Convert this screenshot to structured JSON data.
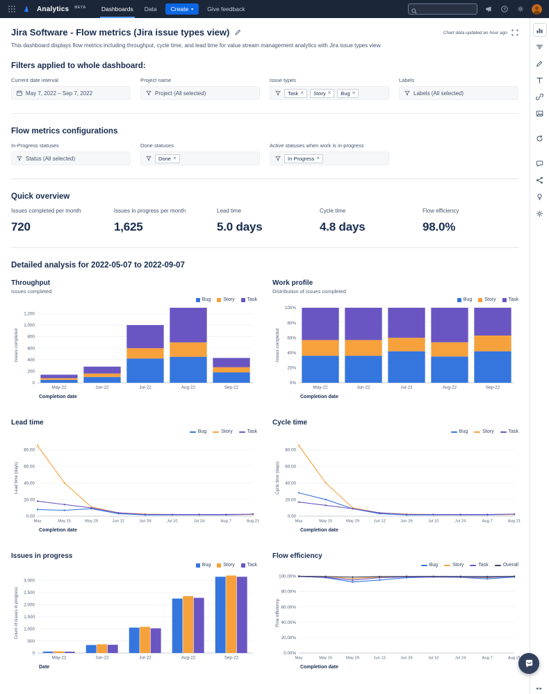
{
  "navbar": {
    "app_name": "Analytics",
    "beta": "BETA",
    "nav_dashboards": "Dashboards",
    "nav_data": "Data",
    "create_label": "Create",
    "feedback_label": "Give feedback",
    "search_placeholder": ""
  },
  "header": {
    "title": "Jira Software - Flow metrics (Jira issue types view)",
    "updated_note": "Chart data updated an hour ago",
    "description": "This dashboard displays flow metrics including throughput, cycle time, and lead time for value stream management analytics with Jira issue types view."
  },
  "filters": {
    "heading": "Filters applied to whole dashboard:",
    "fields": [
      {
        "label": "Current date interval",
        "icon": "calendar-icon",
        "value": "May 7, 2022  –  Sep 7, 2022",
        "chips": []
      },
      {
        "label": "Project name",
        "icon": "funnel-icon",
        "value": "Project (All selected)",
        "chips": []
      },
      {
        "label": "Issue types",
        "icon": "funnel-icon",
        "value": "",
        "chips": [
          "Task",
          "Story",
          "Bug"
        ]
      },
      {
        "label": "Labels",
        "icon": "funnel-icon",
        "value": "Labels (All selected)",
        "chips": []
      }
    ]
  },
  "configs": {
    "heading": "Flow metrics configurations",
    "fields": [
      {
        "label": "In-Progress statuses",
        "icon": "funnel-icon",
        "value": "Status (All selected)",
        "chips": []
      },
      {
        "label": "Done statuses",
        "icon": "funnel-icon",
        "value": "",
        "chips": [
          "Done"
        ]
      },
      {
        "label": "Active statuses when work is in-progress",
        "icon": "funnel-icon",
        "value": "",
        "chips": [
          "In Progress"
        ]
      }
    ]
  },
  "overview": {
    "heading": "Quick overview",
    "metrics": [
      {
        "label": "Issues completed per month",
        "value": "720"
      },
      {
        "label": "Issues in progress per month",
        "value": "1,625"
      },
      {
        "label": "Lead time",
        "value": "5.0 days"
      },
      {
        "label": "Cycle time",
        "value": "4.8 days"
      },
      {
        "label": "Flow efficiency",
        "value": "98.0%"
      }
    ]
  },
  "detailed_heading": "Detailed analysis for 2022-05-07 to 2022-09-07",
  "sidebar_icons": [
    "charts-panel-icon",
    "filter-icon",
    "draw-icon",
    "text-icon",
    "link-icon",
    "image-icon",
    "refresh-icon",
    "comment-icon",
    "share-icon",
    "tips-icon",
    "settings-icon"
  ],
  "colors": {
    "bug": "#3575DE",
    "story": "#F6A13C",
    "task": "#6A55C2",
    "overall": "#344563",
    "accent": "#0C66E4"
  },
  "chart_data": [
    {
      "type": "bar",
      "mode": "stacked",
      "percent": false,
      "title": "Throughput",
      "subtitle": "Issues completed",
      "categories": [
        "May-22",
        "Jun-22",
        "Jul-22",
        "Aug-22",
        "Sep-22"
      ],
      "series": [
        {
          "name": "Bug",
          "color": "#3575DE",
          "values": [
            50,
            100,
            420,
            450,
            180
          ]
        },
        {
          "name": "Story",
          "color": "#F6A13C",
          "values": [
            30,
            60,
            180,
            250,
            90
          ]
        },
        {
          "name": "Task",
          "color": "#6A55C2",
          "values": [
            60,
            120,
            400,
            600,
            160
          ]
        }
      ],
      "xlabel": "Completion date",
      "ylabel": "Issues completed",
      "ymax": 1300,
      "legend": "square",
      "yticks": [
        {
          "v": 0,
          "l": "0"
        },
        {
          "v": 200,
          "l": "200"
        },
        {
          "v": 400,
          "l": "400"
        },
        {
          "v": 600,
          "l": "600"
        },
        {
          "v": 800,
          "l": "800"
        },
        {
          "v": 1000,
          "l": "1,000"
        },
        {
          "v": 1200,
          "l": "1,200"
        }
      ]
    },
    {
      "type": "bar",
      "mode": "stacked",
      "percent": true,
      "title": "Work profile",
      "subtitle": "Distribution of issues completed",
      "categories": [
        "May-22",
        "Jun-22",
        "Jul-22",
        "Aug-22",
        "Sep-22"
      ],
      "series": [
        {
          "name": "Bug",
          "color": "#3575DE",
          "values": [
            36,
            36,
            42,
            35,
            42
          ]
        },
        {
          "name": "Story",
          "color": "#F6A13C",
          "values": [
            21,
            21,
            18,
            19,
            21
          ]
        },
        {
          "name": "Task",
          "color": "#6A55C2",
          "values": [
            43,
            43,
            40,
            46,
            37
          ]
        }
      ],
      "xlabel": "Completion date",
      "ylabel": "Issues completed",
      "ymax": 100,
      "legend": "square",
      "yticks": [
        {
          "v": 0,
          "l": "0%"
        },
        {
          "v": 20,
          "l": "20%"
        },
        {
          "v": 40,
          "l": "40%"
        },
        {
          "v": 60,
          "l": "60%"
        },
        {
          "v": 80,
          "l": "80%"
        },
        {
          "v": 100,
          "l": "100%"
        }
      ]
    },
    {
      "type": "line",
      "title": "Lead time",
      "x": [
        "May",
        "May 15",
        "May 29",
        "Jun 12",
        "Jun 26",
        "Jul 10",
        "Jul 24",
        "Aug 7",
        "Aug 21"
      ],
      "series": [
        {
          "name": "Bug",
          "color": "#3575DE",
          "values": [
            8,
            7,
            9,
            3,
            1.5,
            1.5,
            1.5,
            1.5,
            2
          ]
        },
        {
          "name": "Story",
          "color": "#F6A13C",
          "values": [
            85,
            40,
            11,
            4,
            2.5,
            2,
            2,
            2,
            2
          ]
        },
        {
          "name": "Task",
          "color": "#6A55C2",
          "values": [
            18,
            14,
            10,
            4,
            2,
            2,
            2,
            2,
            2.5
          ]
        }
      ],
      "xlabel": "Completion date",
      "ylabel": "Lead time (days)",
      "ymax": 92,
      "legend": "line",
      "yticks": [
        {
          "v": 0,
          "l": "0.00"
        },
        {
          "v": 20,
          "l": "20.00"
        },
        {
          "v": 40,
          "l": "40.00"
        },
        {
          "v": 60,
          "l": "60.00"
        },
        {
          "v": 80,
          "l": "80.00"
        }
      ]
    },
    {
      "type": "line",
      "title": "Cycle time",
      "x": [
        "May",
        "May 15",
        "May 29",
        "Jun 12",
        "Jun 26",
        "Jul 10",
        "Jul 24",
        "Aug 7",
        "Aug 21"
      ],
      "series": [
        {
          "name": "Bug",
          "color": "#3575DE",
          "values": [
            28,
            20,
            9,
            3,
            1.5,
            1.5,
            1.5,
            1.5,
            2
          ]
        },
        {
          "name": "Story",
          "color": "#F6A13C",
          "values": [
            85,
            40,
            10,
            4,
            2.5,
            2,
            2,
            2,
            2
          ]
        },
        {
          "name": "Task",
          "color": "#6A55C2",
          "values": [
            17,
            13,
            9,
            4,
            2,
            2,
            2,
            2,
            2.5
          ]
        }
      ],
      "xlabel": "Completion date",
      "ylabel": "Cycle time (days)",
      "ymax": 92,
      "legend": "line",
      "yticks": [
        {
          "v": 0,
          "l": "0.00"
        },
        {
          "v": 20,
          "l": "20.00"
        },
        {
          "v": 40,
          "l": "40.00"
        },
        {
          "v": 60,
          "l": "60.00"
        },
        {
          "v": 80,
          "l": "80.00"
        }
      ]
    },
    {
      "type": "bar",
      "mode": "grouped",
      "percent": false,
      "title": "Issues in progress",
      "categories": [
        "May-22",
        "Jun-22",
        "Jul-22",
        "Aug-22",
        "Sep-22"
      ],
      "series": [
        {
          "name": "Bug",
          "color": "#3575DE",
          "values": [
            60,
            330,
            1050,
            2250,
            3150
          ]
        },
        {
          "name": "Story",
          "color": "#F6A13C",
          "values": [
            70,
            360,
            1080,
            2350,
            3200
          ]
        },
        {
          "name": "Task",
          "color": "#6A55C2",
          "values": [
            55,
            340,
            1020,
            2280,
            3150
          ]
        }
      ],
      "xlabel": "Date",
      "ylabel": "Count of issues in progress",
      "ymax": 3300,
      "legend": "square",
      "yticks": [
        {
          "v": 0,
          "l": "0"
        },
        {
          "v": 500,
          "l": "500"
        },
        {
          "v": 1000,
          "l": "1,000"
        },
        {
          "v": 1500,
          "l": "1,500"
        },
        {
          "v": 2000,
          "l": "2,000"
        },
        {
          "v": 2500,
          "l": "2,500"
        },
        {
          "v": 3000,
          "l": "3,000"
        }
      ]
    },
    {
      "type": "line",
      "title": "Flow efficiency",
      "x": [
        "May",
        "May 15",
        "May 29",
        "Jun 12",
        "Jun 26",
        "Jul 10",
        "Jul 24",
        "Aug 7",
        "Aug 21"
      ],
      "series": [
        {
          "name": "Bug",
          "color": "#3575DE",
          "values": [
            100,
            98,
            92.5,
            95,
            98,
            99,
            98.5,
            96.5,
            99
          ]
        },
        {
          "name": "Story",
          "color": "#F6A13C",
          "values": [
            100,
            99.5,
            97,
            99,
            99.5,
            99.5,
            99,
            98,
            100
          ]
        },
        {
          "name": "Task",
          "color": "#6A55C2",
          "values": [
            99.5,
            98.5,
            95,
            98,
            99,
            99,
            99,
            98.5,
            99.5
          ]
        },
        {
          "name": "Overall",
          "color": "#344563",
          "values": [
            100,
            99.6,
            98.8,
            99.5,
            99.7,
            99.8,
            99.7,
            99.5,
            99.8
          ]
        }
      ],
      "xlabel": "Completion date",
      "ylabel": "Flow efficiency",
      "ymax": 104,
      "legend": "line",
      "yticks": [
        {
          "v": 0,
          "l": "0.00%"
        },
        {
          "v": 20,
          "l": "20.00%"
        },
        {
          "v": 40,
          "l": "40.00%"
        },
        {
          "v": 60,
          "l": "60.00%"
        },
        {
          "v": 80,
          "l": "80.00%"
        },
        {
          "v": 100,
          "l": "100.00%"
        }
      ]
    }
  ]
}
